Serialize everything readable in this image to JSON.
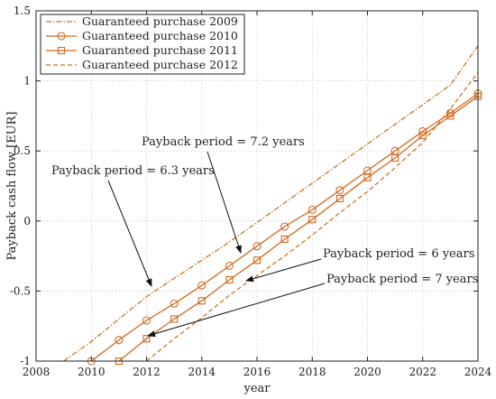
{
  "chart_data": {
    "type": "line",
    "title": "",
    "xlabel": "year",
    "ylabel": "Payback cash flow [EUR]",
    "xlim": [
      2008,
      2024
    ],
    "ylim": [
      -1,
      1.5
    ],
    "x_ticks": [
      2008,
      2010,
      2012,
      2014,
      2016,
      2018,
      2020,
      2022,
      2024
    ],
    "y_ticks": [
      -1,
      -0.5,
      0,
      0.5,
      1,
      1.5
    ],
    "x_tick_labels": [
      "2008",
      "2010",
      "2012",
      "2014",
      "2016",
      "2018",
      "2020",
      "2022",
      "2024"
    ],
    "y_tick_labels": [
      "-1",
      "-0.5",
      "0",
      "0.5",
      "1",
      "1.5"
    ],
    "grid": true,
    "legend_position": "top-left",
    "series": [
      {
        "name": "Guaranteed purchase 2009",
        "style": "dash-dot",
        "marker": "none",
        "color": "#C8781E",
        "x": [
          2009,
          2010,
          2011,
          2012,
          2013,
          2014,
          2015,
          2016,
          2017,
          2018,
          2019,
          2020,
          2021,
          2022,
          2023,
          2024
        ],
        "y": [
          -1.0,
          -0.86,
          -0.7,
          -0.54,
          -0.41,
          -0.28,
          -0.15,
          -0.01,
          0.13,
          0.27,
          0.41,
          0.55,
          0.69,
          0.83,
          0.97,
          1.25
        ]
      },
      {
        "name": "Guaranteed purchase 2010",
        "style": "solid",
        "marker": "circle",
        "color": "#D2691E",
        "x": [
          2010,
          2011,
          2012,
          2013,
          2014,
          2015,
          2016,
          2017,
          2018,
          2019,
          2020,
          2021,
          2022,
          2023,
          2024
        ],
        "y": [
          -1.0,
          -0.85,
          -0.71,
          -0.59,
          -0.46,
          -0.32,
          -0.18,
          -0.04,
          0.08,
          0.22,
          0.36,
          0.5,
          0.64,
          0.77,
          0.91
        ]
      },
      {
        "name": "Guaranteed purchase 2011",
        "style": "solid",
        "marker": "square",
        "color": "#D2691E",
        "x": [
          2011,
          2012,
          2013,
          2014,
          2015,
          2016,
          2017,
          2018,
          2019,
          2020,
          2021,
          2022,
          2023,
          2024
        ],
        "y": [
          -1.0,
          -0.84,
          -0.7,
          -0.57,
          -0.42,
          -0.28,
          -0.13,
          0.01,
          0.16,
          0.31,
          0.45,
          0.61,
          0.75,
          0.89
        ]
      },
      {
        "name": "Guaranteed purchase 2012",
        "style": "dashed",
        "marker": "none",
        "color": "#C8781E",
        "x": [
          2012,
          2013,
          2014,
          2015,
          2016,
          2017,
          2018,
          2019,
          2020,
          2021,
          2022,
          2023,
          2024
        ],
        "y": [
          -1.0,
          -0.84,
          -0.69,
          -0.53,
          -0.39,
          -0.25,
          -0.1,
          0.06,
          0.21,
          0.38,
          0.56,
          0.8,
          1.06
        ]
      }
    ],
    "annotations": [
      {
        "text": "Payback period = 7.2 years",
        "points_to": [
          2015.5,
          -0.12
        ]
      },
      {
        "text": "Payback period = 6.3 years",
        "points_to": [
          2012.4,
          -0.5
        ]
      },
      {
        "text": "Payback period = 6 years",
        "points_to": [
          2015.8,
          -0.4
        ]
      },
      {
        "text": "Payback period = 7 years",
        "points_to": [
          2012.2,
          -0.85
        ]
      }
    ]
  }
}
